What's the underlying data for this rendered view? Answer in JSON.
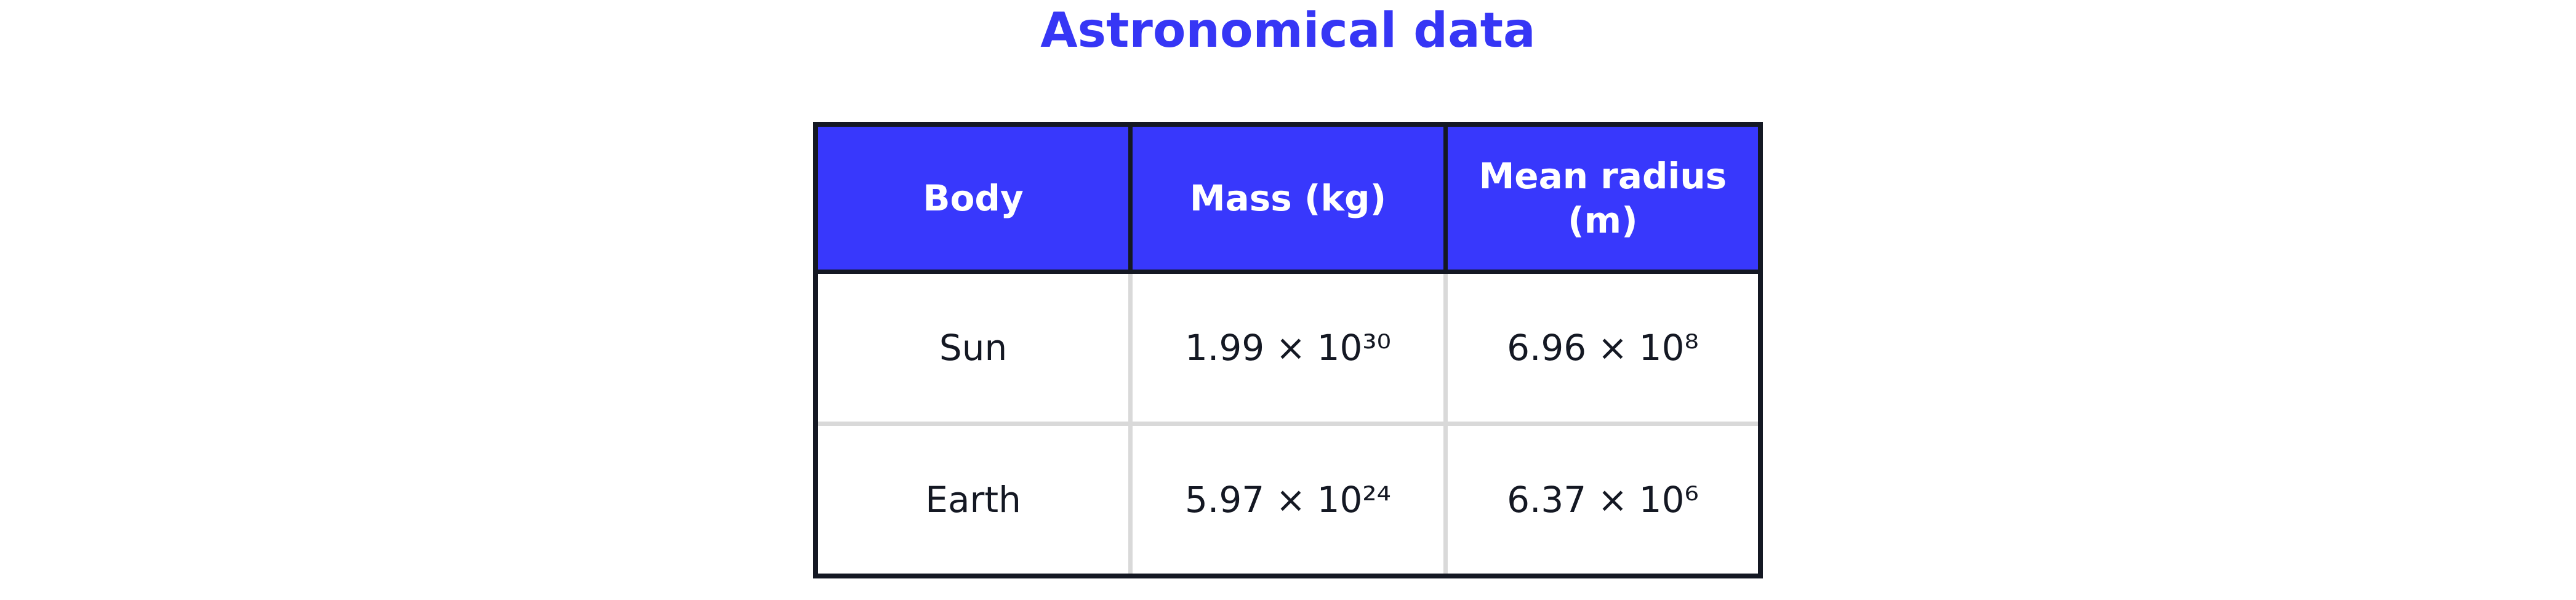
{
  "header": {
    "title": "Astronomical data"
  },
  "table": {
    "columns": [
      "Body",
      "Mass (kg)",
      "Mean radius (m)"
    ],
    "rows": [
      [
        "Sun",
        "1.99 × 10³⁰",
        "6.96 × 10⁸"
      ],
      [
        "Earth",
        "5.97 × 10²⁴",
        "6.37 × 10⁶"
      ]
    ]
  }
}
